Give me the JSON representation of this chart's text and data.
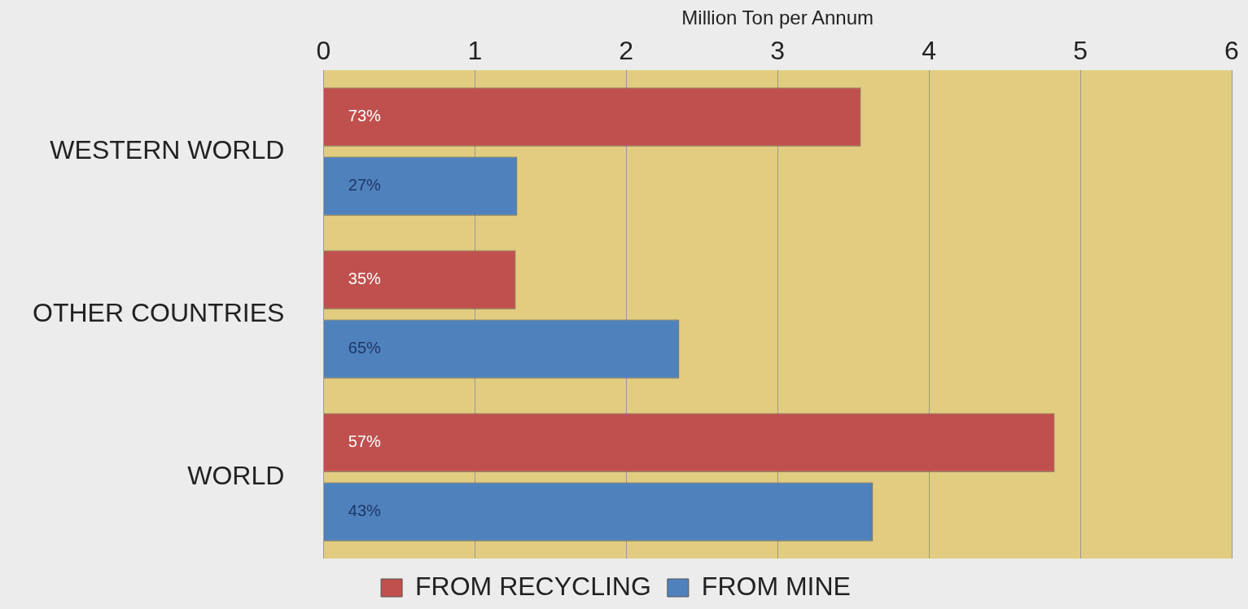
{
  "chart_data": {
    "type": "bar",
    "orientation": "horizontal",
    "xlabel": "Million Ton per Annum",
    "categories": [
      "WESTERN WORLD",
      "OTHER COUNTRIES",
      "WORLD"
    ],
    "series": [
      {
        "name": "FROM RECYCLING",
        "color": "#c0504d",
        "values": [
          3.55,
          1.27,
          4.83
        ]
      },
      {
        "name": "FROM MINE",
        "color": "#4f81bd",
        "values": [
          1.28,
          2.35,
          3.63
        ]
      }
    ],
    "annotations": [
      "73%",
      "27%",
      "35%",
      "65%",
      "57%",
      "43%"
    ],
    "xlim": [
      0,
      6
    ],
    "xticks": [
      0,
      1,
      2,
      3,
      4,
      5,
      6
    ],
    "grid": "x",
    "legend": "bottom"
  }
}
